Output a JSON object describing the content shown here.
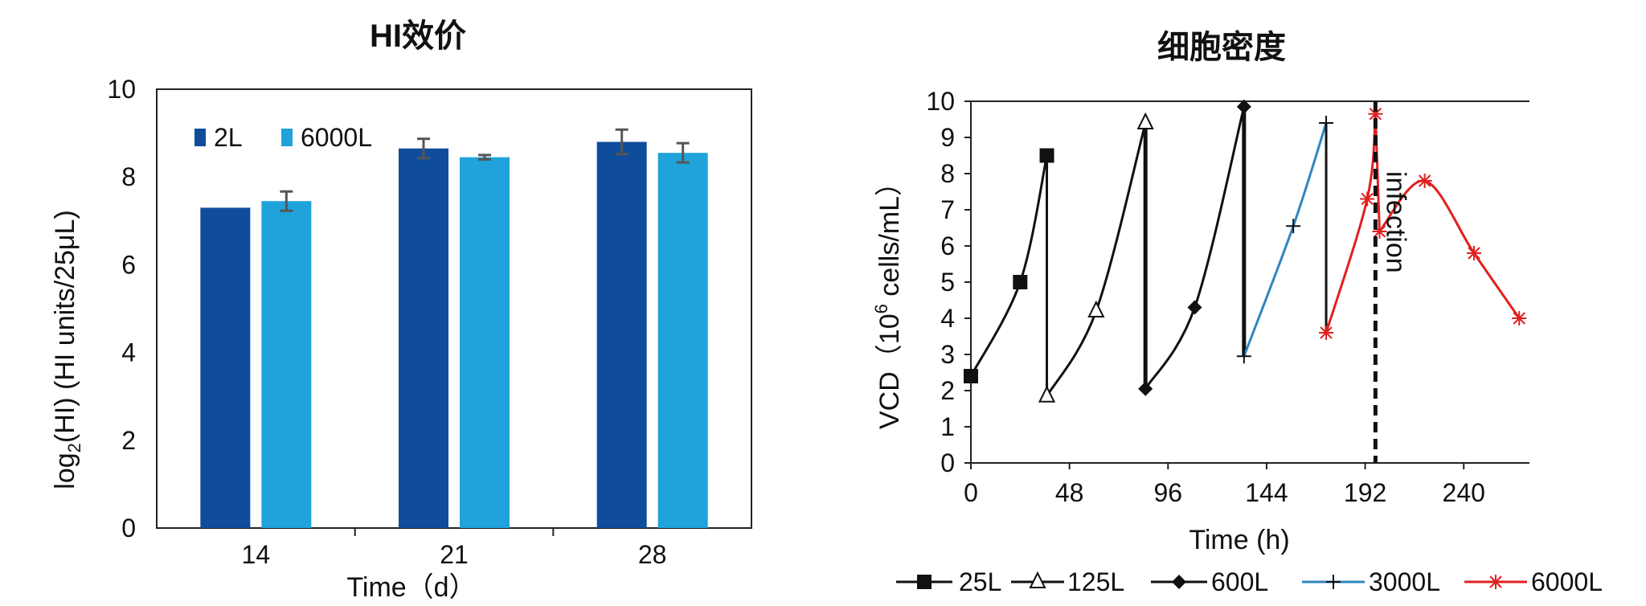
{
  "chart_data": [
    {
      "type": "bar",
      "title": "HI效价",
      "xlabel": "Time（d）",
      "ylabel_prefix": "log",
      "ylabel_sub": "2",
      "ylabel_suffix": "(HI) (HI units/25μL)",
      "categories": [
        "14",
        "21",
        "28"
      ],
      "ylim": [
        0,
        10
      ],
      "yticks": [
        "0",
        "2",
        "4",
        "6",
        "8",
        "10"
      ],
      "legend_position": "top-left",
      "series": [
        {
          "name": "2L",
          "color": "#0F4C9C",
          "values": [
            7.3,
            8.65,
            8.8
          ],
          "errors": [
            0.0,
            0.22,
            0.28
          ]
        },
        {
          "name": "6000L",
          "color": "#1FA3DA",
          "values": [
            7.45,
            8.45,
            8.55
          ],
          "errors": [
            0.22,
            0.05,
            0.22
          ]
        }
      ]
    },
    {
      "type": "line",
      "title": "细胞密度",
      "xlabel": "Time (h)",
      "ylabel_prefix": "VCD（10",
      "ylabel_sup": "6",
      "ylabel_suffix": " cells/mL）",
      "xlim": [
        0,
        272
      ],
      "ylim": [
        0,
        10
      ],
      "xticks": [
        "0",
        "48",
        "96",
        "144",
        "192",
        "240"
      ],
      "yticks": [
        "0",
        "1",
        "2",
        "3",
        "4",
        "5",
        "6",
        "7",
        "8",
        "9",
        "10"
      ],
      "annotation": "infection",
      "infection_x": 197,
      "legend_position": "bottom",
      "series": [
        {
          "name": "25L",
          "color": "#111111",
          "marker": "square",
          "x": [
            0,
            24,
            37,
            37
          ],
          "y": [
            2.4,
            5.0,
            8.5,
            1.9
          ]
        },
        {
          "name": "125L",
          "color": "#111111",
          "marker": "triangle",
          "x": [
            37,
            61,
            85,
            85
          ],
          "y": [
            1.85,
            4.2,
            9.4,
            2.05
          ]
        },
        {
          "name": "600L",
          "color": "#111111",
          "marker": "diamond",
          "x": [
            85,
            109,
            133,
            133
          ],
          "y": [
            2.05,
            4.3,
            9.85,
            2.95
          ]
        },
        {
          "name": "3000L",
          "color": "#2E86C1",
          "marker": "plus",
          "x": [
            133,
            157,
            173,
            173
          ],
          "y": [
            2.95,
            6.55,
            9.4,
            3.6
          ]
        },
        {
          "name": "6000L",
          "color": "#E02020",
          "marker": "star",
          "x": [
            173,
            193,
            197,
            199,
            221,
            245,
            267
          ],
          "y": [
            3.6,
            7.3,
            9.65,
            6.4,
            7.8,
            5.8,
            4.0
          ]
        }
      ]
    }
  ]
}
